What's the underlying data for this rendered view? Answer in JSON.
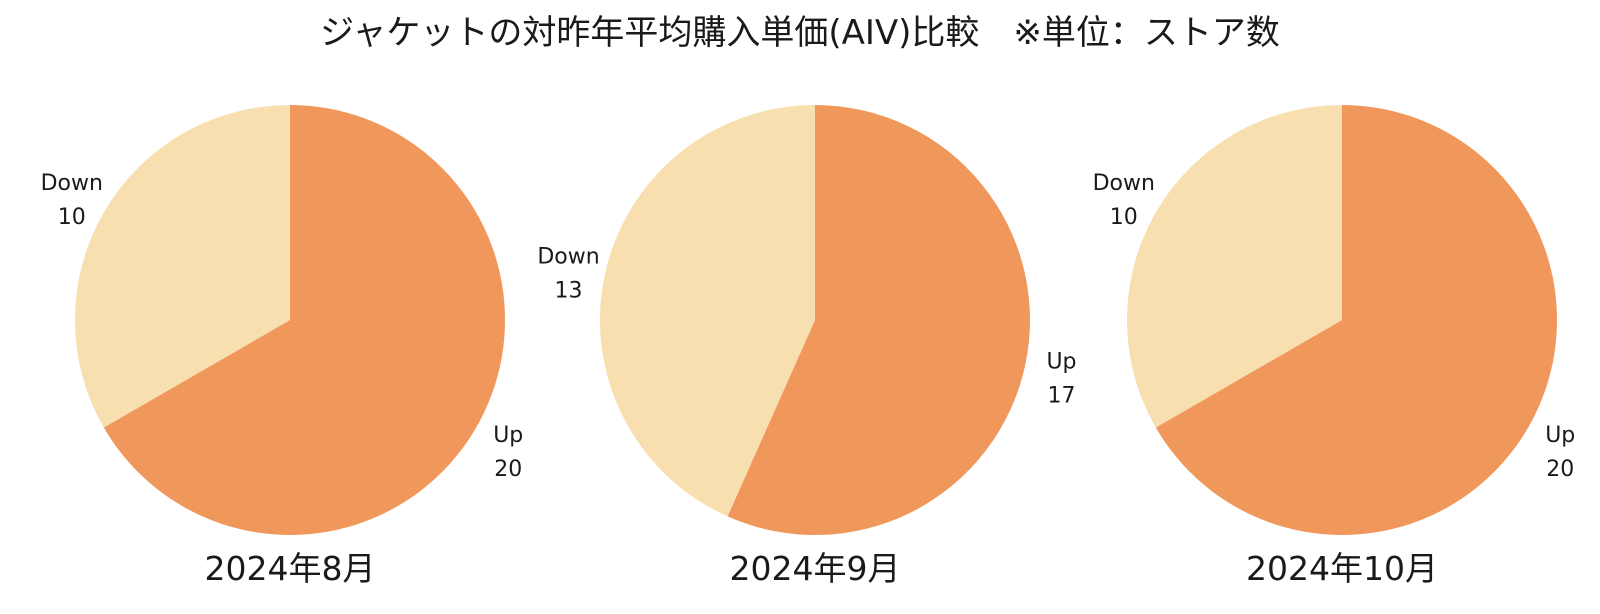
{
  "title": "ジャケットの対昨年平均購入単価(AIV)比較　※単位：ストア数",
  "colors": {
    "up": "#f0975b",
    "down": "#f8dfb0"
  },
  "chart_data": [
    {
      "type": "pie",
      "title": "2024年8月",
      "labels": [
        "Up",
        "Down"
      ],
      "values": [
        20,
        10
      ]
    },
    {
      "type": "pie",
      "title": "2024年9月",
      "labels": [
        "Up",
        "Down"
      ],
      "values": [
        17,
        13
      ]
    },
    {
      "type": "pie",
      "title": "2024年10月",
      "labels": [
        "Up",
        "Down"
      ],
      "values": [
        20,
        10
      ]
    }
  ]
}
